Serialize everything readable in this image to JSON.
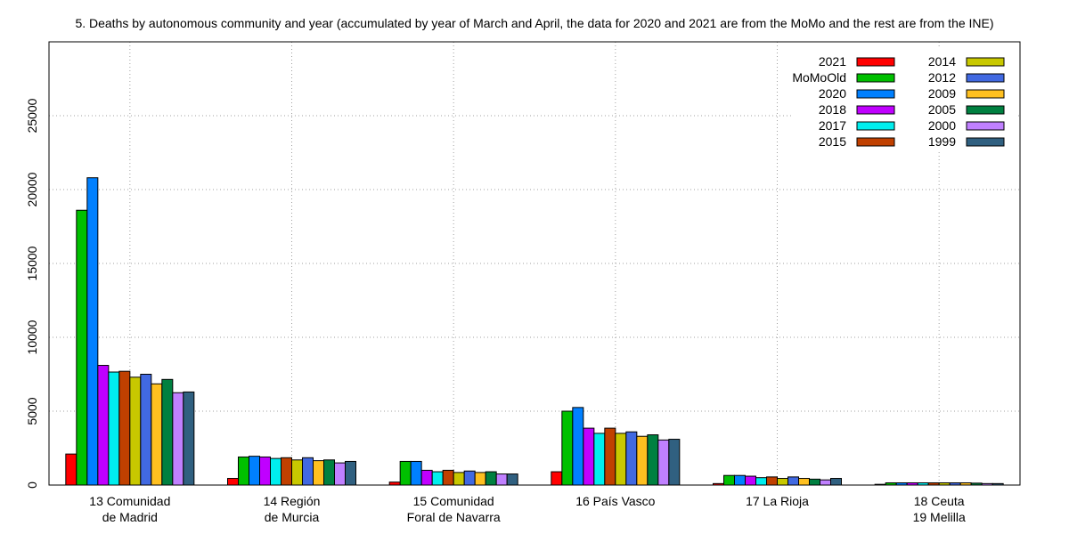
{
  "chart_data": {
    "type": "bar",
    "title": "5. Deaths by autonomous community and year (accumulated by year of March and April, the data for 2020 and 2021 are from the MoMo and the rest are from the INE)",
    "xlabel": "",
    "ylabel": "",
    "ylim": [
      0,
      30000
    ],
    "yticks": [
      0,
      5000,
      10000,
      15000,
      20000,
      25000
    ],
    "grid": true,
    "legend_position": "top-right",
    "categories": [
      [
        "13 Comunidad",
        "de Madrid"
      ],
      [
        "14 Región",
        "de Murcia"
      ],
      [
        "15 Comunidad",
        "Foral de Navarra"
      ],
      [
        "16 País Vasco"
      ],
      [
        "17 La Rioja"
      ],
      [
        "18 Ceuta",
        "19 Melilla"
      ]
    ],
    "series": [
      {
        "name": "2021",
        "color": "#ff0000",
        "values": [
          2100,
          450,
          200,
          900,
          100,
          50
        ]
      },
      {
        "name": "MoMoOld",
        "color": "#00c000",
        "values": [
          18600,
          1900,
          1600,
          5000,
          650,
          150
        ]
      },
      {
        "name": "2020",
        "color": "#0080ff",
        "values": [
          20800,
          1950,
          1600,
          5250,
          650,
          150
        ]
      },
      {
        "name": "2018",
        "color": "#c000ff",
        "values": [
          8100,
          1900,
          1000,
          3850,
          600,
          150
        ]
      },
      {
        "name": "2017",
        "color": "#00eeee",
        "values": [
          7650,
          1800,
          900,
          3500,
          500,
          150
        ]
      },
      {
        "name": "2015",
        "color": "#c04000",
        "values": [
          7700,
          1850,
          1000,
          3850,
          550,
          150
        ]
      },
      {
        "name": "2014",
        "color": "#c8c800",
        "values": [
          7300,
          1700,
          850,
          3500,
          450,
          150
        ]
      },
      {
        "name": "2012",
        "color": "#4169e1",
        "values": [
          7500,
          1850,
          950,
          3600,
          550,
          150
        ]
      },
      {
        "name": "2009",
        "color": "#ffc020",
        "values": [
          6850,
          1650,
          850,
          3300,
          450,
          150
        ]
      },
      {
        "name": "2005",
        "color": "#008040",
        "values": [
          7150,
          1700,
          900,
          3400,
          400,
          130
        ]
      },
      {
        "name": "2000",
        "color": "#c080ff",
        "values": [
          6250,
          1500,
          750,
          3050,
          350,
          100
        ]
      },
      {
        "name": "1999",
        "color": "#306080",
        "values": [
          6300,
          1600,
          750,
          3100,
          450,
          100
        ]
      }
    ]
  }
}
